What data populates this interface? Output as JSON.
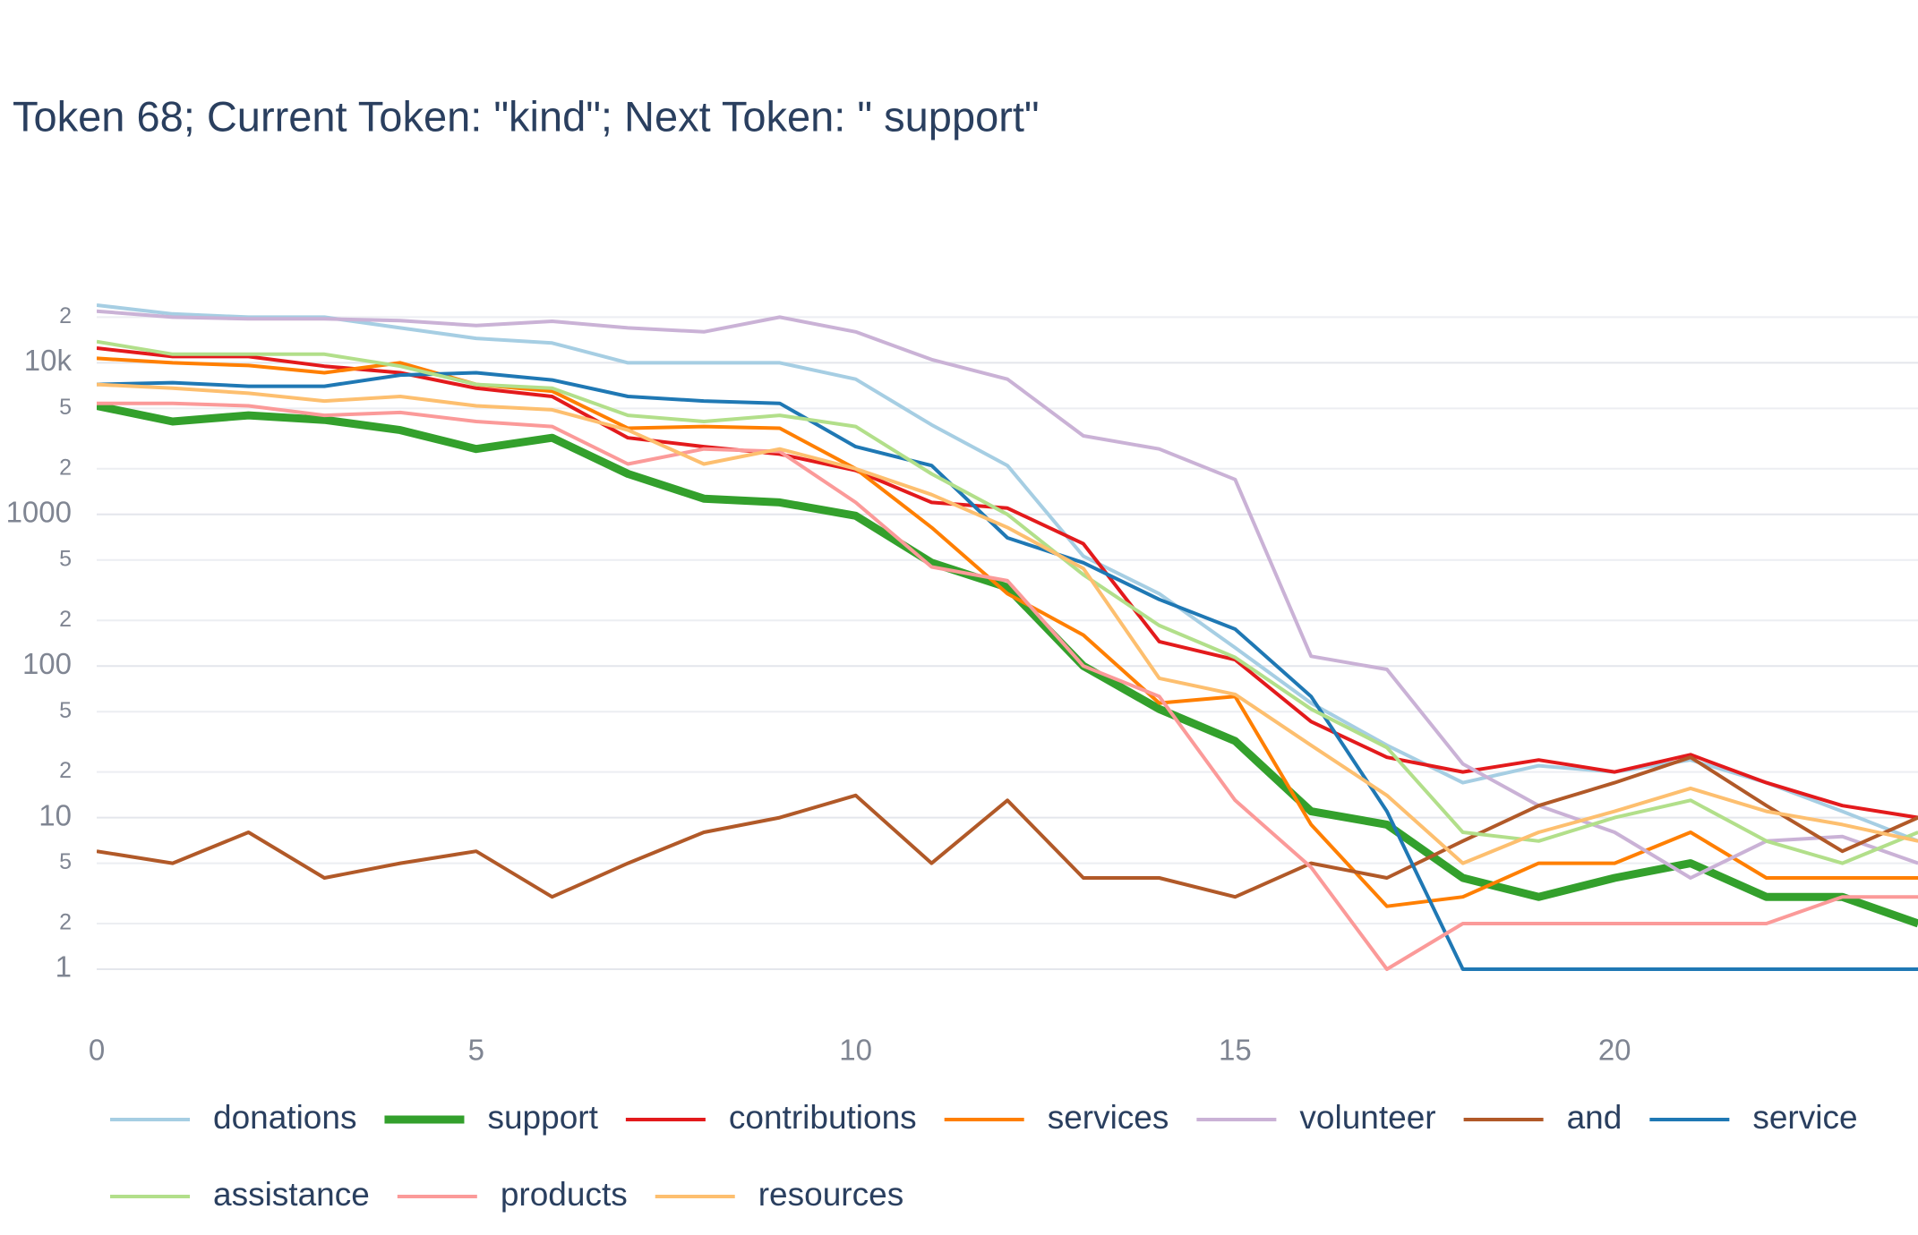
{
  "chart_data": {
    "type": "line",
    "title": "Token 68; Current Token: \"kind\"; Next Token: \" support\"",
    "log_y": true,
    "grid": true,
    "xlim": [
      0,
      24
    ],
    "xticks": [
      0,
      5,
      10,
      15,
      20
    ],
    "ylim": [
      0.45,
      35000
    ],
    "yticks": [
      1,
      2,
      5,
      10,
      {
        "value": 20,
        "label": "2"
      },
      {
        "value": 50,
        "label": "5"
      },
      100,
      {
        "value": 200,
        "label": "2"
      },
      {
        "value": 500,
        "label": "5"
      },
      1000,
      {
        "value": 2000,
        "label": "2"
      },
      {
        "value": 5000,
        "label": "5"
      },
      {
        "value": 10000,
        "label": "10k"
      },
      {
        "value": 20000,
        "label": "2"
      }
    ],
    "x": [
      0,
      1,
      2,
      3,
      4,
      5,
      6,
      7,
      8,
      9,
      10,
      11,
      12,
      13,
      14,
      15,
      16,
      17,
      18,
      19,
      20,
      21,
      22,
      23,
      24
    ],
    "series": [
      {
        "name": "donations",
        "color": "#a6cee3",
        "width": 4,
        "values": [
          24000,
          21000,
          20000,
          20000,
          17000,
          14500,
          13500,
          10000,
          10000,
          10000,
          7800,
          3900,
          2100,
          530,
          300,
          132,
          57,
          30,
          17,
          22,
          20,
          24,
          17,
          11,
          7
        ]
      },
      {
        "name": "support",
        "color": "#33a02c",
        "width": 9,
        "values": [
          5200,
          4100,
          4500,
          4200,
          3600,
          2700,
          3200,
          1850,
          1270,
          1200,
          980,
          480,
          330,
          100,
          52,
          32,
          11,
          9,
          4,
          3,
          4,
          5,
          3,
          3,
          2
        ]
      },
      {
        "name": "contributions",
        "color": "#e31a1c",
        "width": 4,
        "values": [
          12500,
          11000,
          11000,
          9500,
          8600,
          6800,
          6000,
          3200,
          2800,
          2500,
          1950,
          1200,
          1100,
          640,
          145,
          110,
          43,
          25,
          20,
          24,
          20,
          26,
          17,
          12,
          10
        ]
      },
      {
        "name": "services",
        "color": "#ff7f00",
        "width": 4,
        "values": [
          10700,
          10000,
          9600,
          8600,
          10000,
          7200,
          6500,
          3700,
          3800,
          3700,
          2000,
          820,
          300,
          160,
          57,
          63,
          9,
          2.6,
          3,
          5,
          5,
          8,
          4,
          4,
          4
        ]
      },
      {
        "name": "volunteer",
        "color": "#cab2d6",
        "width": 4,
        "values": [
          21900,
          20000,
          19500,
          19500,
          19000,
          17600,
          18800,
          17000,
          16000,
          20000,
          16000,
          10500,
          7800,
          3300,
          2700,
          1700,
          116,
          95,
          22.6,
          12,
          8,
          4,
          7,
          7.5,
          5
        ]
      },
      {
        "name": "and",
        "color": "#b15928",
        "width": 4,
        "values": [
          6,
          5,
          8,
          4,
          5,
          6,
          3,
          5,
          8,
          10,
          14,
          5,
          13,
          4,
          4,
          3,
          5,
          4,
          7,
          12,
          17,
          25,
          12,
          6,
          10
        ]
      },
      {
        "name": "service",
        "color": "#1f78b4",
        "width": 4,
        "values": [
          7200,
          7400,
          7000,
          7000,
          8300,
          8600,
          7700,
          6000,
          5600,
          5400,
          2800,
          2100,
          700,
          480,
          275,
          175,
          63,
          11,
          1,
          1,
          1,
          1,
          1,
          1,
          1
        ]
      },
      {
        "name": "assistance",
        "color": "#b2df8a",
        "width": 4,
        "values": [
          13800,
          11400,
          11400,
          11400,
          9500,
          7200,
          6800,
          4500,
          4100,
          4500,
          3800,
          1850,
          1000,
          400,
          185,
          114,
          52,
          29,
          8,
          7,
          10,
          13,
          7,
          5,
          8
        ]
      },
      {
        "name": "products",
        "color": "#fb9a99",
        "width": 4,
        "values": [
          5400,
          5400,
          5200,
          4500,
          4700,
          4100,
          3800,
          2150,
          2700,
          2600,
          1200,
          450,
          365,
          100,
          63,
          13,
          4.7,
          1,
          2,
          2,
          2,
          2,
          2,
          3,
          3
        ]
      },
      {
        "name": "resources",
        "color": "#fdbf6f",
        "width": 4,
        "values": [
          7200,
          6800,
          6300,
          5600,
          6000,
          5200,
          4900,
          3600,
          2150,
          2700,
          2000,
          1350,
          820,
          440,
          83,
          65,
          30,
          14,
          5,
          8,
          11,
          15.6,
          11,
          9,
          7
        ]
      }
    ]
  }
}
